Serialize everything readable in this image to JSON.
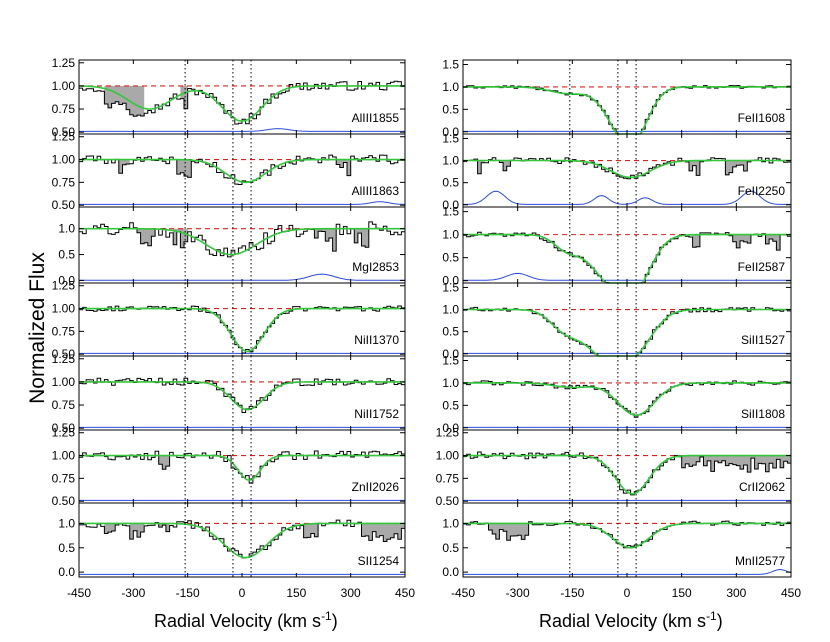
{
  "figure": {
    "y_axis_title": "Normalized Flux",
    "x_axis_title_text": "Radial Velocity (km s",
    "x_axis_title_sup": "-1",
    "x_axis_title_end": ")"
  },
  "chart_data": [
    {
      "type": "line",
      "column": "left",
      "x_ticks": [
        -450,
        -300,
        -150,
        0,
        150,
        300,
        450
      ],
      "x_tick_labels": [
        "-450",
        "-300",
        "-150",
        "0",
        "150",
        "300",
        "450"
      ],
      "xlim": [
        -450,
        450
      ],
      "component_velocities": [
        -157,
        -25,
        25
      ],
      "panels": [
        {
          "label": "AlIII1855",
          "ylim": [
            0.48,
            1.28
          ],
          "yticks": [
            0.5,
            0.75,
            1.0,
            1.25
          ],
          "ytick_labels": [
            "0.50",
            "0.75",
            "1.00",
            "1.25"
          ],
          "profile": [
            {
              "v": -255,
              "d": 0.25,
              "w": 60
            },
            {
              "v": 0,
              "d": 0.38,
              "w": 55
            }
          ],
          "shaded": [
            [
              -380,
              -270
            ],
            [
              -170,
              -150
            ]
          ],
          "error_bumps": [
            {
              "v": 100,
              "a": 0.03,
              "w": 30
            }
          ],
          "noise": 0.05
        },
        {
          "label": "AlIII1863",
          "ylim": [
            0.48,
            1.28
          ],
          "yticks": [
            0.5,
            0.75,
            1.0,
            1.25
          ],
          "ytick_labels": [
            "0.50",
            "0.75",
            "1.00",
            "1.25"
          ],
          "profile": [
            {
              "v": 10,
              "d": 0.25,
              "w": 55
            }
          ],
          "shaded": [
            [
              -335,
              -310
            ],
            [
              -175,
              -145
            ],
            [
              260,
              300
            ]
          ],
          "error_bumps": [
            {
              "v": 380,
              "a": 0.03,
              "w": 25
            }
          ],
          "noise": 0.05
        },
        {
          "label": "MgI2853",
          "ylim": [
            -0.05,
            1.42
          ],
          "yticks": [
            0.0,
            0.5,
            1.0
          ],
          "ytick_labels": [
            "0.0",
            "0.5",
            "1.0"
          ],
          "profile": [
            {
              "v": -30,
              "d": 0.5,
              "w": 70
            }
          ],
          "shaded": [
            [
              -290,
              -240
            ],
            [
              -190,
              -150
            ],
            [
              200,
              260
            ],
            [
              310,
              350
            ]
          ],
          "error_bumps": [
            {
              "v": 220,
              "a": 0.12,
              "w": 35
            }
          ],
          "noise": 0.14
        },
        {
          "label": "NiII1370",
          "ylim": [
            0.48,
            1.28
          ],
          "yticks": [
            0.5,
            0.75,
            1.0,
            1.25
          ],
          "ytick_labels": [
            "0.50",
            "0.75",
            "1.00",
            "1.25"
          ],
          "profile": [
            {
              "v": 15,
              "d": 0.47,
              "w": 45
            }
          ],
          "shaded": [],
          "error_bumps": [],
          "noise": 0.03
        },
        {
          "label": "NiII1752",
          "ylim": [
            0.48,
            1.28
          ],
          "yticks": [
            0.5,
            0.75,
            1.0,
            1.25
          ],
          "ytick_labels": [
            "0.50",
            "0.75",
            "1.00",
            "1.25"
          ],
          "profile": [
            {
              "v": 15,
              "d": 0.3,
              "w": 45
            }
          ],
          "shaded": [],
          "error_bumps": [],
          "noise": 0.04
        },
        {
          "label": "ZnII2026",
          "ylim": [
            0.48,
            1.28
          ],
          "yticks": [
            0.5,
            0.75,
            1.0,
            1.25
          ],
          "ytick_labels": [
            "0.50",
            "0.75",
            "1.00",
            "1.25"
          ],
          "profile": [
            {
              "v": 20,
              "d": 0.27,
              "w": 30
            }
          ],
          "shaded": [
            [
              -225,
              -205
            ]
          ],
          "error_bumps": [],
          "noise": 0.05
        },
        {
          "label": "SII1254",
          "ylim": [
            -0.1,
            1.42
          ],
          "yticks": [
            0.0,
            0.5,
            1.0
          ],
          "ytick_labels": [
            "0.0",
            "0.5",
            "1.0"
          ],
          "profile": [
            {
              "v": 10,
              "d": 0.7,
              "w": 60
            }
          ],
          "shaded": [
            [
              -380,
              -350
            ],
            [
              -310,
              -270
            ],
            [
              -230,
              -200
            ],
            [
              175,
              205
            ],
            [
              330,
              450
            ]
          ],
          "error_bumps": [],
          "noise": 0.08
        }
      ]
    },
    {
      "type": "line",
      "column": "right",
      "x_ticks": [
        -450,
        -300,
        -150,
        0,
        150,
        300,
        450
      ],
      "x_tick_labels": [
        "-450",
        "-300",
        "-150",
        "0",
        "150",
        "300",
        "450"
      ],
      "xlim": [
        -450,
        450
      ],
      "component_velocities": [
        -157,
        -25,
        25
      ],
      "panels": [
        {
          "label": "FeII1608",
          "ylim": [
            -0.05,
            1.6
          ],
          "yticks": [
            0.0,
            0.5,
            1.0,
            1.5
          ],
          "ytick_labels": [
            "0.0",
            "0.5",
            "1.0",
            "1.5"
          ],
          "profile": [
            {
              "v": -160,
              "d": 0.15,
              "w": 50
            },
            {
              "v": -20,
              "d": 0.75,
              "w": 45
            },
            {
              "v": 25,
              "d": 0.75,
              "w": 40
            }
          ],
          "shaded": [],
          "error_bumps": [],
          "noise": 0.03
        },
        {
          "label": "FeII2250",
          "ylim": [
            -0.05,
            1.6
          ],
          "yticks": [
            0.0,
            0.5,
            1.0,
            1.5
          ],
          "ytick_labels": [
            "0.0",
            "0.5",
            "1.0",
            "1.5"
          ],
          "profile": [
            {
              "v": 10,
              "d": 0.38,
              "w": 55
            }
          ],
          "shaded": [
            [
              -410,
              -390
            ],
            [
              -350,
              -320
            ],
            [
              170,
              200
            ],
            [
              270,
              330
            ]
          ],
          "error_bumps": [
            {
              "v": -360,
              "a": 0.3,
              "w": 25
            },
            {
              "v": -70,
              "a": 0.2,
              "w": 20
            },
            {
              "v": 50,
              "a": 0.15,
              "w": 20
            },
            {
              "v": 340,
              "a": 0.3,
              "w": 25
            }
          ],
          "noise": 0.07
        },
        {
          "label": "FeII2587",
          "ylim": [
            -0.05,
            1.6
          ],
          "yticks": [
            0.0,
            0.5,
            1.0,
            1.5
          ],
          "ytick_labels": [
            "0.0",
            "0.5",
            "1.0",
            "1.5"
          ],
          "profile": [
            {
              "v": -165,
              "d": 0.3,
              "w": 35
            },
            {
              "v": -50,
              "d": 0.9,
              "w": 55
            },
            {
              "v": 25,
              "d": 0.9,
              "w": 45
            }
          ],
          "shaded": [
            [
              180,
              200
            ],
            [
              290,
              340
            ],
            [
              380,
              420
            ]
          ],
          "error_bumps": [
            {
              "v": -300,
              "a": 0.15,
              "w": 30
            }
          ],
          "noise": 0.05
        },
        {
          "label": "SiII1527",
          "ylim": [
            -0.05,
            1.6
          ],
          "yticks": [
            0.0,
            0.5,
            1.0,
            1.5
          ],
          "ytick_labels": [
            "0.0",
            "0.5",
            "1.0",
            "1.5"
          ],
          "profile": [
            {
              "v": -170,
              "d": 0.45,
              "w": 40
            },
            {
              "v": -70,
              "d": 0.9,
              "w": 50
            },
            {
              "v": 20,
              "d": 0.9,
              "w": 50
            }
          ],
          "shaded": [],
          "error_bumps": [],
          "noise": 0.05
        },
        {
          "label": "SiII1808",
          "ylim": [
            -0.05,
            1.6
          ],
          "yticks": [
            0.0,
            0.5,
            1.0,
            1.5
          ],
          "ytick_labels": [
            "0.0",
            "0.5",
            "1.0",
            "1.5"
          ],
          "profile": [
            {
              "v": -150,
              "d": 0.1,
              "w": 50
            },
            {
              "v": 25,
              "d": 0.72,
              "w": 50
            }
          ],
          "shaded": [],
          "error_bumps": [],
          "noise": 0.05
        },
        {
          "label": "CrII2062",
          "ylim": [
            0.48,
            1.28
          ],
          "yticks": [
            0.5,
            0.75,
            1.0,
            1.25
          ],
          "ytick_labels": [
            "0.50",
            "0.75",
            "1.00",
            "1.25"
          ],
          "profile": [
            {
              "v": 15,
              "d": 0.42,
              "w": 45
            }
          ],
          "shaded": [
            [
              150,
              450
            ]
          ],
          "error_bumps": [],
          "noise": 0.04
        },
        {
          "label": "MnII2577",
          "ylim": [
            -0.1,
            1.42
          ],
          "yticks": [
            0.0,
            0.5,
            1.0
          ],
          "ytick_labels": [
            "0.0",
            "0.5",
            "1.0"
          ],
          "profile": [
            {
              "v": 10,
              "d": 0.5,
              "w": 50
            }
          ],
          "shaded": [
            [
              -380,
              -270
            ]
          ],
          "error_bumps": [
            {
              "v": 420,
              "a": 0.1,
              "w": 20
            }
          ],
          "noise": 0.05
        }
      ]
    }
  ]
}
